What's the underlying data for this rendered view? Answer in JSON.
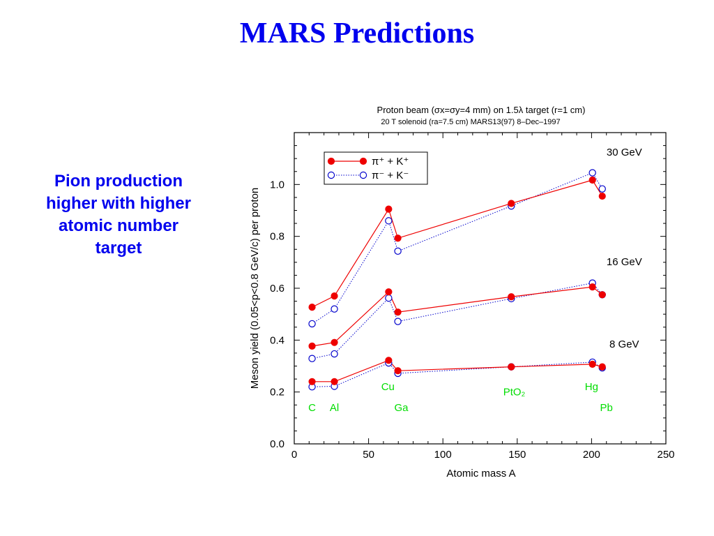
{
  "slide": {
    "title": "MARS Predictions",
    "side_text": [
      "Pion production",
      "higher with higher",
      "atomic number",
      "target"
    ]
  },
  "colors": {
    "title": "#0000ee",
    "positive_series": "#ee0000",
    "negative_series": "#0000cc",
    "element_labels": "#00dd00"
  },
  "chart_data": {
    "type": "line",
    "title_line1": "Proton beam (σx=σy=4 mm) on 1.5λ target (r=1 cm)",
    "title_line2": "20 T solenoid (ra=7.5 cm)      MARS13(97)   8–Dec–1997",
    "xlabel": "Atomic mass A",
    "ylabel": "Meson yield (0.05<p<0.8 GeV/c) per proton",
    "xlim": [
      0,
      250
    ],
    "ylim": [
      0,
      1.2
    ],
    "xticks": [
      0,
      50,
      100,
      150,
      200,
      250
    ],
    "yticks": [
      0.0,
      0.2,
      0.4,
      0.6,
      0.8,
      1.0
    ],
    "ytick_labels": [
      "0.0",
      "0.2",
      "0.4",
      "0.6",
      "0.8",
      "1.0"
    ],
    "legend_position": "top-left",
    "legend": [
      {
        "label": "π⁺ + K⁺",
        "style": "solid-filled"
      },
      {
        "label": "π⁻ + K⁻",
        "style": "dotted-open"
      }
    ],
    "x": [
      12,
      27,
      63.5,
      69.7,
      146,
      200.6,
      207.2
    ],
    "groups": [
      {
        "label": "30 GeV",
        "pos": [
          0.527,
          0.57,
          0.905,
          0.793,
          0.927,
          1.017,
          0.955
        ],
        "neg": [
          0.463,
          0.52,
          0.86,
          0.743,
          0.917,
          1.045,
          0.983
        ]
      },
      {
        "label": "16 GeV",
        "pos": [
          0.377,
          0.391,
          0.586,
          0.508,
          0.567,
          0.605,
          0.575
        ],
        "neg": [
          0.329,
          0.347,
          0.562,
          0.472,
          0.56,
          0.62,
          0.575
        ]
      },
      {
        "label": "8 GeV",
        "pos": [
          0.24,
          0.24,
          0.322,
          0.282,
          0.297,
          0.307,
          0.297
        ],
        "neg": [
          0.22,
          0.222,
          0.312,
          0.272,
          0.297,
          0.315,
          0.293
        ]
      }
    ],
    "element_labels": [
      "C",
      "Al",
      "Cu",
      "Ga",
      "PtO₂",
      "Hg",
      "Pb"
    ]
  }
}
